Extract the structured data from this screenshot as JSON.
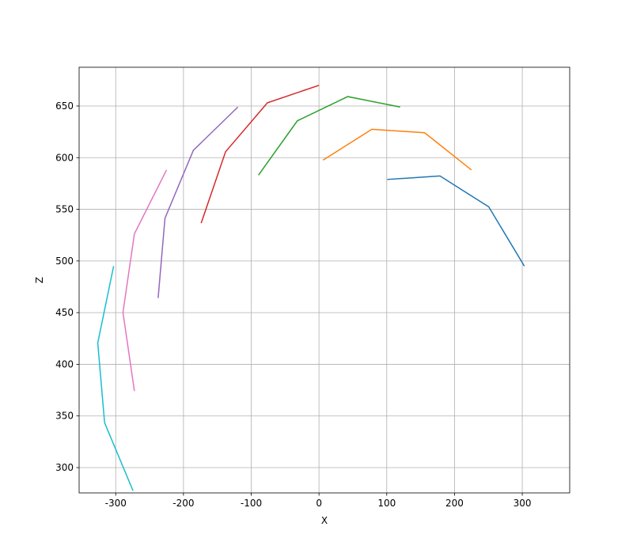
{
  "chart_data": {
    "type": "line",
    "xlabel": "X",
    "ylabel": "Z",
    "xlim": [
      -354,
      370
    ],
    "ylim": [
      275.5,
      687.5
    ],
    "xticks": [
      -300,
      -200,
      -100,
      0,
      100,
      200,
      300
    ],
    "yticks": [
      300,
      350,
      400,
      450,
      500,
      550,
      600,
      650
    ],
    "grid": true,
    "series": [
      {
        "color": "#1f77b4",
        "x": [
          303.1,
          250.5,
          178.5,
          100.6
        ],
        "values": [
          495,
          552.4,
          582.3,
          578.9
        ]
      },
      {
        "color": "#ff7f0e",
        "x": [
          225,
          155.9,
          78,
          6
        ],
        "values": [
          588.1,
          624.1,
          627.5,
          597.6
        ]
      },
      {
        "color": "#2ca02c",
        "x": [
          119.7,
          42.4,
          -31.9,
          -89.3
        ],
        "values": [
          649,
          659.1,
          635.7,
          583.1
        ]
      },
      {
        "color": "#d62728",
        "x": [
          0,
          -76.1,
          -137.9,
          -173.9
        ],
        "values": [
          670,
          653.1,
          605.7,
          536.6
        ]
      },
      {
        "color": "#9467bd",
        "x": [
          -119.7,
          -185.4,
          -227.3,
          -237.4
        ],
        "values": [
          649,
          607.1,
          541.4,
          464.1
        ]
      },
      {
        "color": "#e377c2",
        "x": [
          -225,
          -272.4,
          -289.3,
          -272.4
        ],
        "values": [
          588.1,
          526.3,
          450.2,
          374.1
        ]
      },
      {
        "color": "#17becf",
        "x": [
          -303.1,
          -326.5,
          -316.4,
          -274.5
        ],
        "values": [
          495,
          420.7,
          343.4,
          277.7
        ]
      }
    ]
  }
}
